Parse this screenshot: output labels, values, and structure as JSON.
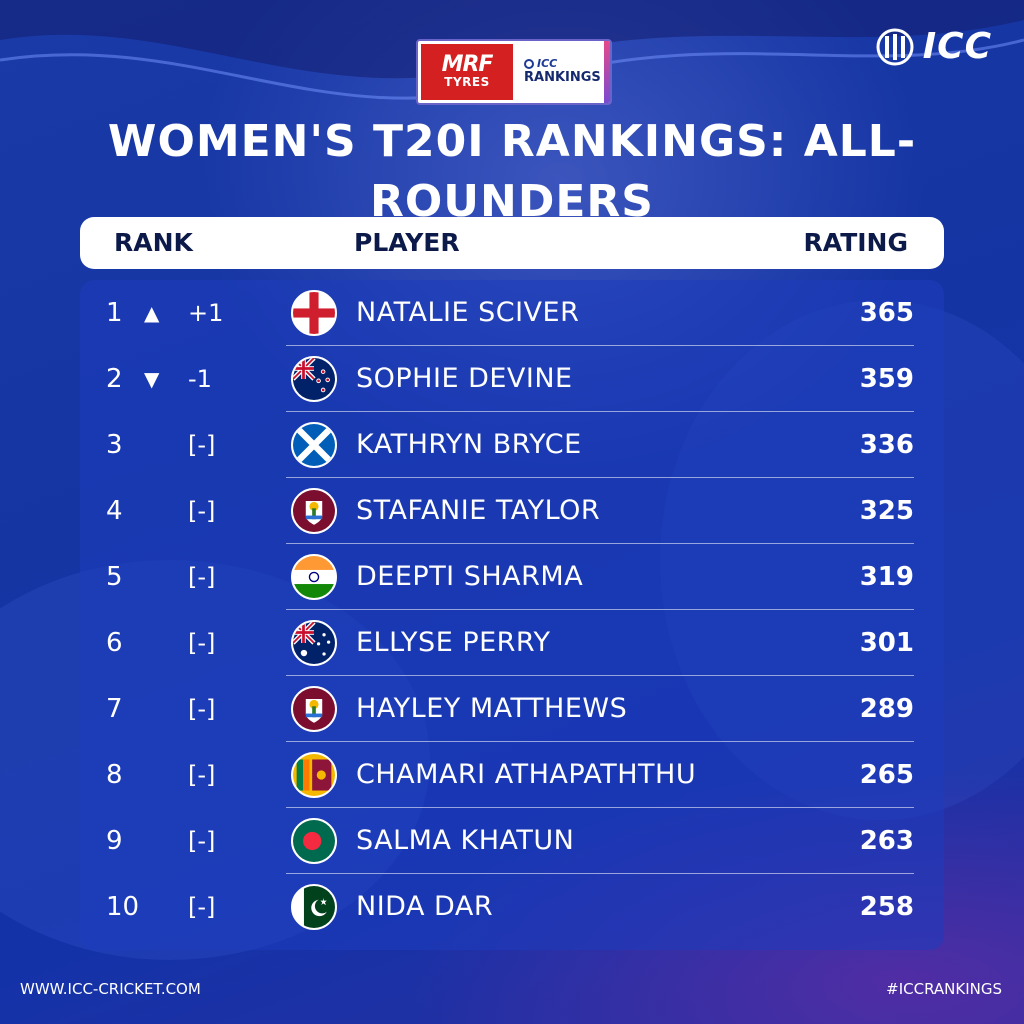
{
  "colors": {
    "background": "#1535a3",
    "header_text": "#0c1a4a",
    "mrf_red": "#d42020"
  },
  "sponsor": {
    "mrf": "MRF",
    "tyres": "TYRES",
    "icc_small": "ICC",
    "rankings": "RANKINGS"
  },
  "logo": {
    "text": "ICC",
    "icon": "icc-stumps-logo"
  },
  "title": "WOMEN'S T20I RANKINGS: ALL-ROUNDERS",
  "header": {
    "rank": "RANK",
    "player": "PLAYER",
    "rating": "RATING"
  },
  "rows": [
    {
      "rank": "1",
      "arrow": "▲",
      "move": "+1",
      "flag": "england-flag-icon",
      "player": "NATALIE SCIVER",
      "rating": "365"
    },
    {
      "rank": "2",
      "arrow": "▼",
      "move": "-1",
      "flag": "new-zealand-flag-icon",
      "player": "SOPHIE DEVINE",
      "rating": "359"
    },
    {
      "rank": "3",
      "arrow": "",
      "move": "[-]",
      "flag": "scotland-flag-icon",
      "player": "KATHRYN BRYCE",
      "rating": "336"
    },
    {
      "rank": "4",
      "arrow": "",
      "move": "[-]",
      "flag": "west-indies-flag-icon",
      "player": "STAFANIE TAYLOR",
      "rating": "325"
    },
    {
      "rank": "5",
      "arrow": "",
      "move": "[-]",
      "flag": "india-flag-icon",
      "player": "DEEPTI SHARMA",
      "rating": "319"
    },
    {
      "rank": "6",
      "arrow": "",
      "move": "[-]",
      "flag": "australia-flag-icon",
      "player": "ELLYSE PERRY",
      "rating": "301"
    },
    {
      "rank": "7",
      "arrow": "",
      "move": "[-]",
      "flag": "west-indies-flag-icon",
      "player": "HAYLEY MATTHEWS",
      "rating": "289"
    },
    {
      "rank": "8",
      "arrow": "",
      "move": "[-]",
      "flag": "sri-lanka-flag-icon",
      "player": "CHAMARI ATHAPATHTHU",
      "rating": "265"
    },
    {
      "rank": "9",
      "arrow": "",
      "move": "[-]",
      "flag": "bangladesh-flag-icon",
      "player": "SALMA KHATUN",
      "rating": "263"
    },
    {
      "rank": "10",
      "arrow": "",
      "move": "[-]",
      "flag": "pakistan-flag-icon",
      "player": "NIDA DAR",
      "rating": "258"
    }
  ],
  "footer": {
    "website": "WWW.ICC-CRICKET.COM",
    "hashtag": "#ICCRANKINGS"
  }
}
